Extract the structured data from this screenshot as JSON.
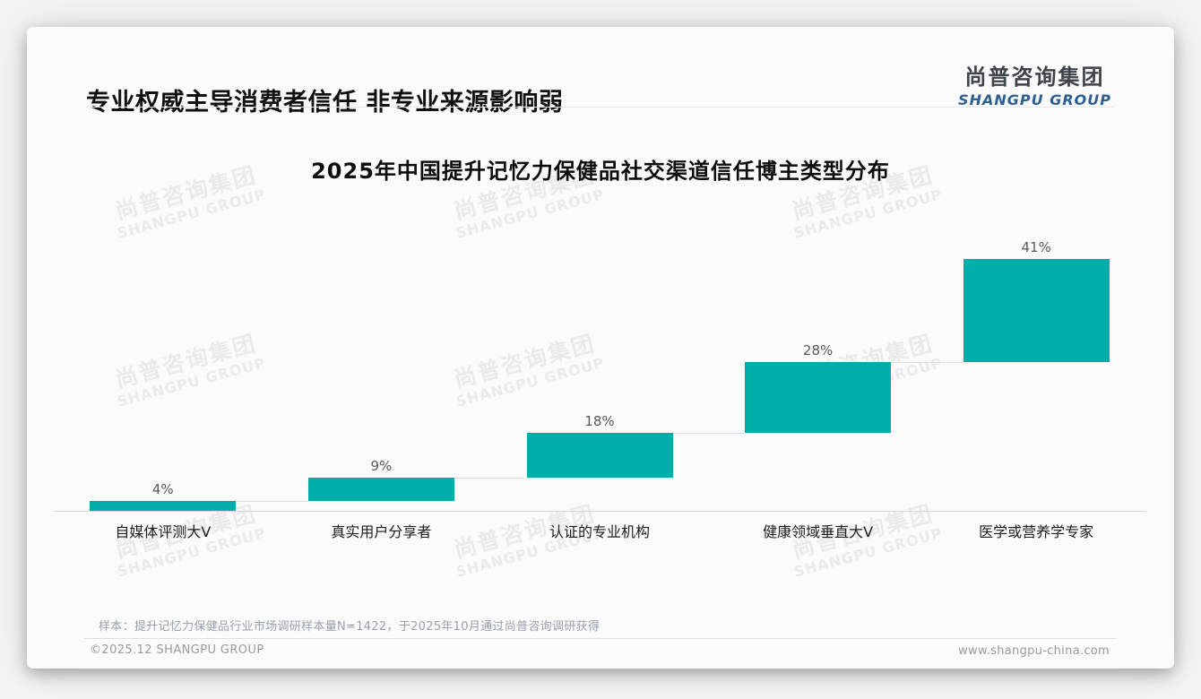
{
  "header": {
    "title": "专业权威主导消费者信任 非专业来源影响弱",
    "logo": {
      "zh": "尚普咨询集团",
      "en": "SHANGPU GROUP"
    },
    "logo_colors": {
      "zh": "#3f444b",
      "en": "#2d5f90"
    }
  },
  "watermark": {
    "zh": "尚普咨询集团",
    "en": "SHANGPU GROUP"
  },
  "chart_data": {
    "type": "bar",
    "variant": "waterfall",
    "title": "2025年中国提升记忆力保健品社交渠道信任博主类型分布",
    "categories": [
      "自媒体评测大V",
      "真实用户分享者",
      "认证的专业机构",
      "健康领域垂直大V",
      "医学或营养学专家"
    ],
    "values": [
      4,
      9,
      18,
      28,
      41
    ],
    "data_labels": [
      "4%",
      "9%",
      "18%",
      "28%",
      "41%"
    ],
    "unit": "%",
    "ylim": [
      0,
      100
    ],
    "bar_color": "#00AEA9",
    "connector_color": "#dcdcdc",
    "grid": false,
    "legend": false,
    "y_axis_shown": false,
    "note": "staircase waterfall: each bar starts where the previous bar ends; cumulative totals 4, 13, 31, 59, 100"
  },
  "footnote": "样本：提升记忆力保健品行业市场调研样本量N=1422，于2025年10月通过尚普咨询调研获得",
  "footer": {
    "left": "©2025.12 SHANGPU GROUP",
    "right": "www.shangpu-china.com"
  }
}
